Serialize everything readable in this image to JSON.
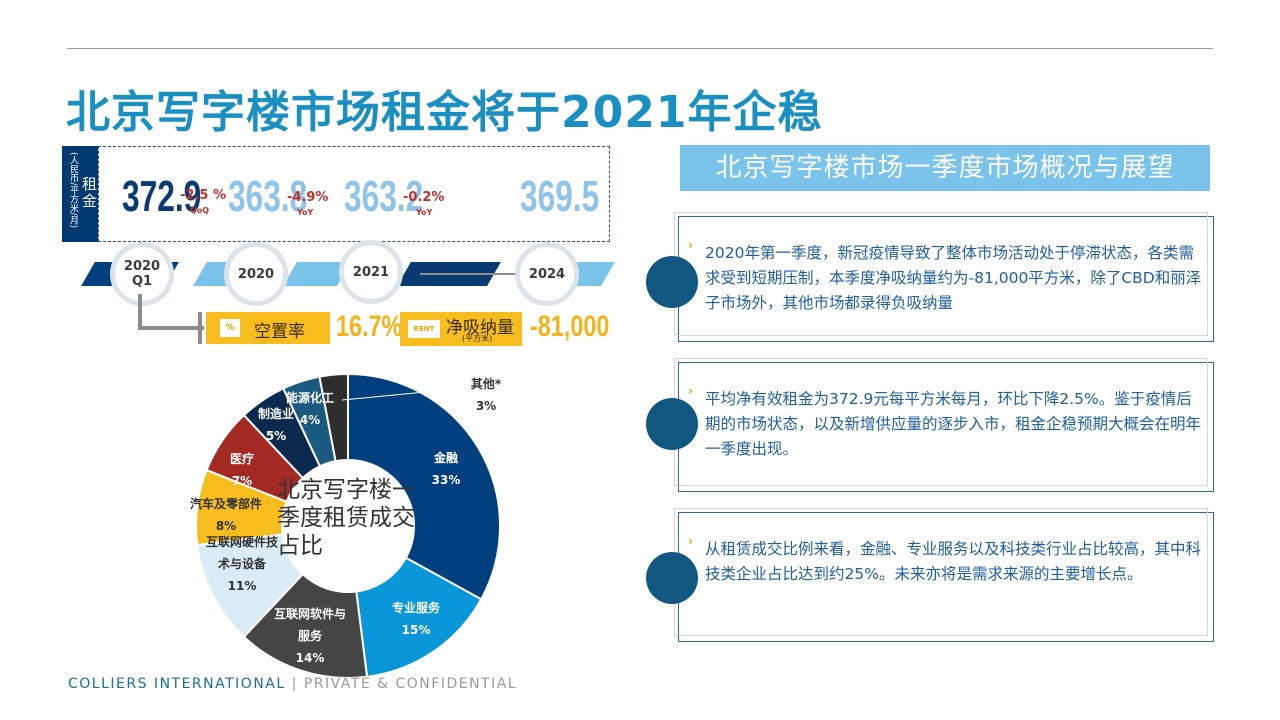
{
  "title": "北京写字楼市场租金将于2021年企稳",
  "rent": {
    "unit": "(人民币/平方米/月)",
    "label": "租金",
    "values": [
      {
        "value": "372.9",
        "change": "-2.5 %",
        "basis": "QoQ"
      },
      {
        "value": "363.8",
        "change": "-4.9%",
        "basis": "YoY"
      },
      {
        "value": "363.2",
        "change": "-0.2%",
        "basis": "YoY"
      },
      {
        "value": "369.5",
        "change": "",
        "basis": ""
      }
    ]
  },
  "timeline": [
    "2020 Q1",
    "2020",
    "2021",
    "2024"
  ],
  "stats": {
    "vacancy_icon": "%",
    "vacancy_label": "空置率",
    "vacancy_value": "16.7%",
    "absorption_icon": "RENT",
    "absorption_label": "净吸纳量",
    "absorption_unit": "(平方米)",
    "absorption_value": "-81,000"
  },
  "chart_data": {
    "type": "pie",
    "title": "北京写字楼一季度租赁成交占比",
    "donut": true,
    "slices": [
      {
        "label": "金融",
        "value": 33,
        "display": "33%",
        "color": "#003f7d"
      },
      {
        "label": "专业服务",
        "value": 15,
        "display": "15%",
        "color": "#0a97d9"
      },
      {
        "label": "互联网软件与服务",
        "value": 14,
        "display": "14%",
        "color": "#454545"
      },
      {
        "label": "互联网硬件技术与设备",
        "value": 11,
        "display": "11%",
        "color": "#d9ecf8"
      },
      {
        "label": "汽车及零部件",
        "value": 8,
        "display": "8%",
        "color": "#f7bd1e"
      },
      {
        "label": "医疗",
        "value": 7,
        "display": "7%",
        "color": "#a22a22"
      },
      {
        "label": "制造业",
        "value": 5,
        "display": "5%",
        "color": "#0c2a4f"
      },
      {
        "label": "能源化工",
        "value": 4,
        "display": "4%",
        "color": "#1a5a80"
      },
      {
        "label": "其他*",
        "value": 3,
        "display": "3%",
        "color": "#2e2e2e"
      }
    ]
  },
  "panel": {
    "heading": "北京写字楼市场一季度市场概况与展望",
    "items": [
      "2020年第一季度，新冠疫情导致了整体市场活动处于停滞状态，各类需求受到短期压制，本季度净吸纳量约为-81,000平方米，除了CBD和丽泽子市场外，其他市场都录得负吸纳量",
      "平均净有效租金为372.9元每平方米每月，环比下降2.5%。鉴于疫情后期的市场状态，以及新增供应量的逐步入市，租金企稳预期大概会在明年一季度出现。",
      "从租赁成交比例来看，金融、专业服务以及科技类行业占比较高，其中科技类企业占比达到约25%。未来亦将是需求来源的主要增长点。"
    ]
  },
  "footer": {
    "company": "COLLIERS INTERNATIONAL",
    "separator": " | ",
    "note": "PRIVATE & CONFIDENTIAL"
  },
  "colors": {
    "title": "#1a8fc2",
    "navy": "#003a70",
    "accent_light": "#7ac3ea",
    "yellow": "#f7bd1e",
    "red": "#c0302a"
  }
}
